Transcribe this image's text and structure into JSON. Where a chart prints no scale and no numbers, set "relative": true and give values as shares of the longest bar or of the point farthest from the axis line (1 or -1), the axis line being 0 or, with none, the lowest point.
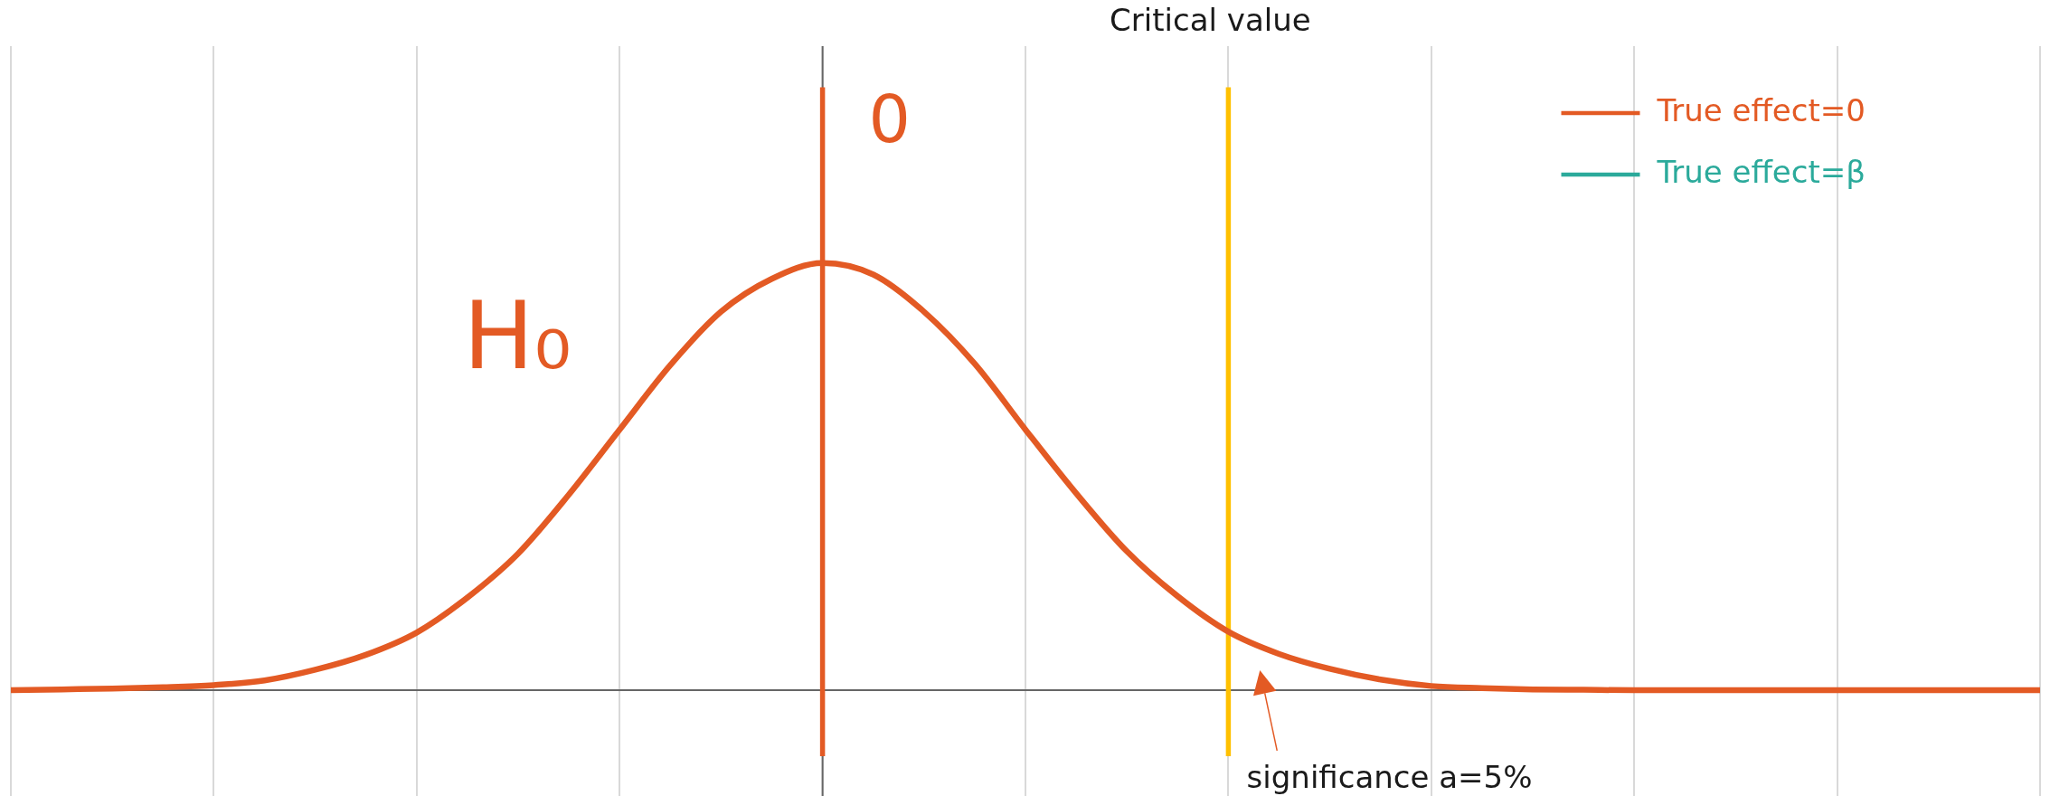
{
  "chart_data": {
    "type": "line",
    "relative": true,
    "categories": [
      null,
      null,
      null,
      null,
      null,
      null,
      null,
      null,
      null,
      null,
      null,
      null,
      null,
      null,
      null,
      null,
      null,
      null,
      null,
      null,
      null,
      null,
      null,
      null,
      null,
      null,
      null,
      null,
      null,
      null,
      null,
      null,
      null,
      null,
      null,
      null,
      null,
      null,
      null,
      null,
      null
    ],
    "series": [
      {
        "name": "True effect=0",
        "color": "#e35a24",
        "values": [
          0,
          0.002,
          0.004,
          0.007,
          0.012,
          0.023,
          0.048,
          0.083,
          0.135,
          0.217,
          0.32,
          0.458,
          0.61,
          0.761,
          0.886,
          0.963,
          1,
          0.973,
          0.886,
          0.764,
          0.61,
          0.461,
          0.325,
          0.22,
          0.137,
          0.085,
          0.05,
          0.025,
          0.01,
          0.005,
          0.002,
          0.001,
          0,
          0,
          0,
          0,
          0,
          0,
          0,
          0,
          0
        ]
      },
      {
        "name": "True effect=β",
        "color": "#2baa9b",
        "values": [
          null,
          null,
          null,
          null,
          null,
          null,
          null,
          null,
          null,
          null,
          null,
          null,
          null,
          null,
          null,
          null,
          null,
          null,
          null,
          null,
          null,
          null,
          null,
          null,
          null,
          null,
          null,
          null,
          null,
          null,
          null,
          null,
          null,
          null,
          null,
          null,
          null,
          null,
          null,
          null,
          null
        ]
      }
    ],
    "annotations": [
      "0",
      "Critical value",
      "H₀",
      "significance a=5%"
    ],
    "grid": "x",
    "legend": "top right",
    "marker": "none"
  }
}
